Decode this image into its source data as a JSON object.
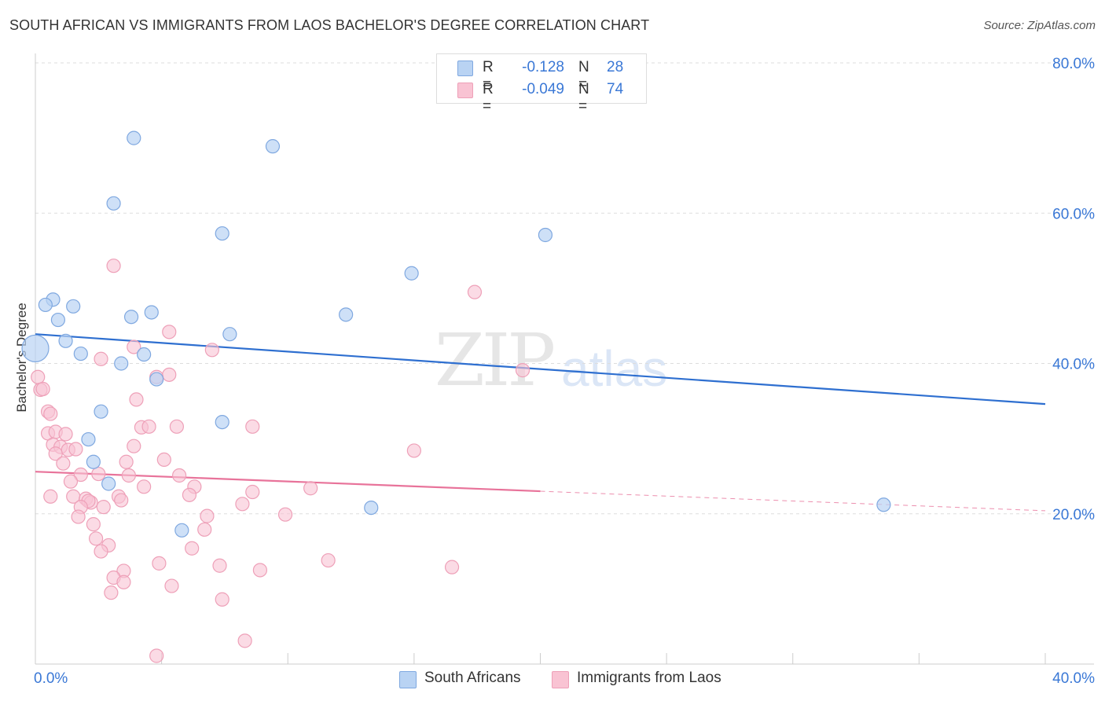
{
  "title": "SOUTH AFRICAN VS IMMIGRANTS FROM LAOS BACHELOR'S DEGREE CORRELATION CHART",
  "source": "Source: ZipAtlas.com",
  "watermark": {
    "zip": "ZIP",
    "atlas": "atlas"
  },
  "colors": {
    "blue_fill": "#b9d3f3",
    "blue_stroke": "#7fa8e0",
    "blue_line": "#2e6fd0",
    "pink_fill": "#f9c3d3",
    "pink_stroke": "#eea0b8",
    "pink_line": "#e8739a",
    "axis_text": "#3a78d6",
    "grid": "#dddddd"
  },
  "stats": [
    {
      "r_label": "R =",
      "r_value": "-0.128",
      "n_label": "N =",
      "n_value": "28"
    },
    {
      "r_label": "R =",
      "r_value": "-0.049",
      "n_label": "N =",
      "n_value": "74"
    }
  ],
  "legend": [
    {
      "label": "South Africans"
    },
    {
      "label": "Immigrants from Laos"
    }
  ],
  "chart_data": {
    "type": "scatter",
    "title": "SOUTH AFRICAN VS IMMIGRANTS FROM LAOS BACHELOR'S DEGREE CORRELATION CHART",
    "xlabel": "",
    "ylabel": "Bachelor's Degree",
    "xlim": [
      0,
      40
    ],
    "ylim": [
      0,
      80
    ],
    "x_tick_labels": [
      {
        "value": 0,
        "label": "0.0%"
      },
      {
        "value": 40,
        "label": "40.0%"
      }
    ],
    "y_tick_labels": [
      {
        "value": 20,
        "label": "20.0%"
      },
      {
        "value": 40,
        "label": "40.0%"
      },
      {
        "value": 60,
        "label": "60.0%"
      },
      {
        "value": 80,
        "label": "80.0%"
      }
    ],
    "series": [
      {
        "name": "South Africans",
        "r": -0.128,
        "n": 28,
        "trend": {
          "x0": 0,
          "y0": 43.9,
          "x1": 40,
          "y1": 34.6
        },
        "points": [
          [
            3.9,
            70.0
          ],
          [
            9.4,
            68.9
          ],
          [
            3.1,
            61.3
          ],
          [
            7.4,
            57.3
          ],
          [
            20.2,
            57.1
          ],
          [
            14.9,
            52.0
          ],
          [
            0.7,
            48.5
          ],
          [
            0.4,
            47.8
          ],
          [
            1.5,
            47.6
          ],
          [
            4.6,
            46.8
          ],
          [
            3.8,
            46.2
          ],
          [
            12.3,
            46.5
          ],
          [
            0.9,
            45.8
          ],
          [
            7.7,
            43.9
          ],
          [
            1.2,
            43.0
          ],
          [
            0.0,
            42.0
          ],
          [
            1.8,
            41.3
          ],
          [
            4.3,
            41.2
          ],
          [
            3.4,
            40.0
          ],
          [
            4.8,
            37.9
          ],
          [
            2.6,
            33.6
          ],
          [
            7.4,
            32.2
          ],
          [
            2.1,
            29.9
          ],
          [
            2.3,
            26.9
          ],
          [
            2.9,
            24.0
          ],
          [
            5.8,
            17.8
          ],
          [
            13.3,
            20.8
          ],
          [
            33.6,
            21.2
          ]
        ],
        "sizes": {
          "15": 3
        }
      },
      {
        "name": "Immigrants from Laos",
        "r": -0.049,
        "n": 74,
        "trend_solid": {
          "x0": 0,
          "y0": 25.6,
          "x1": 20,
          "y1": 23.0
        },
        "trend_dashed": {
          "x0": 20,
          "y0": 23.0,
          "x1": 40,
          "y1": 20.4
        },
        "points": [
          [
            0.1,
            38.2
          ],
          [
            0.2,
            36.5
          ],
          [
            0.3,
            36.6
          ],
          [
            0.5,
            33.6
          ],
          [
            0.6,
            33.3
          ],
          [
            5.3,
            44.2
          ],
          [
            3.1,
            53.0
          ],
          [
            17.4,
            49.5
          ],
          [
            7.0,
            41.8
          ],
          [
            3.9,
            42.2
          ],
          [
            2.6,
            40.6
          ],
          [
            4.8,
            38.2
          ],
          [
            5.3,
            38.5
          ],
          [
            4.0,
            35.2
          ],
          [
            19.3,
            39.1
          ],
          [
            0.5,
            30.7
          ],
          [
            0.8,
            30.9
          ],
          [
            1.2,
            30.6
          ],
          [
            4.2,
            31.5
          ],
          [
            4.5,
            31.6
          ],
          [
            5.6,
            31.6
          ],
          [
            8.6,
            31.6
          ],
          [
            0.7,
            29.2
          ],
          [
            1.0,
            28.9
          ],
          [
            1.3,
            28.5
          ],
          [
            1.6,
            28.6
          ],
          [
            3.9,
            29.0
          ],
          [
            0.8,
            28.0
          ],
          [
            5.1,
            27.2
          ],
          [
            3.6,
            26.9
          ],
          [
            1.1,
            26.7
          ],
          [
            15.0,
            28.4
          ],
          [
            1.8,
            25.2
          ],
          [
            2.5,
            25.3
          ],
          [
            3.7,
            25.1
          ],
          [
            5.7,
            25.1
          ],
          [
            1.4,
            24.3
          ],
          [
            4.3,
            23.6
          ],
          [
            6.3,
            23.6
          ],
          [
            0.6,
            22.3
          ],
          [
            1.5,
            22.3
          ],
          [
            2.0,
            22.0
          ],
          [
            2.2,
            21.5
          ],
          [
            2.1,
            21.7
          ],
          [
            3.3,
            22.3
          ],
          [
            3.4,
            21.8
          ],
          [
            6.1,
            22.5
          ],
          [
            8.6,
            22.9
          ],
          [
            10.9,
            23.4
          ],
          [
            1.8,
            20.9
          ],
          [
            2.7,
            20.9
          ],
          [
            8.2,
            21.3
          ],
          [
            1.7,
            19.6
          ],
          [
            6.8,
            19.7
          ],
          [
            9.9,
            19.9
          ],
          [
            2.3,
            18.6
          ],
          [
            6.7,
            17.9
          ],
          [
            2.4,
            16.7
          ],
          [
            2.9,
            15.8
          ],
          [
            6.2,
            15.4
          ],
          [
            2.6,
            15.0
          ],
          [
            4.9,
            13.4
          ],
          [
            7.3,
            13.1
          ],
          [
            11.6,
            13.8
          ],
          [
            16.5,
            12.9
          ],
          [
            3.5,
            12.4
          ],
          [
            8.9,
            12.5
          ],
          [
            3.1,
            11.5
          ],
          [
            3.5,
            10.9
          ],
          [
            5.4,
            10.4
          ],
          [
            3.0,
            9.5
          ],
          [
            7.4,
            8.6
          ],
          [
            8.3,
            3.1
          ],
          [
            4.8,
            1.1
          ]
        ]
      }
    ]
  }
}
